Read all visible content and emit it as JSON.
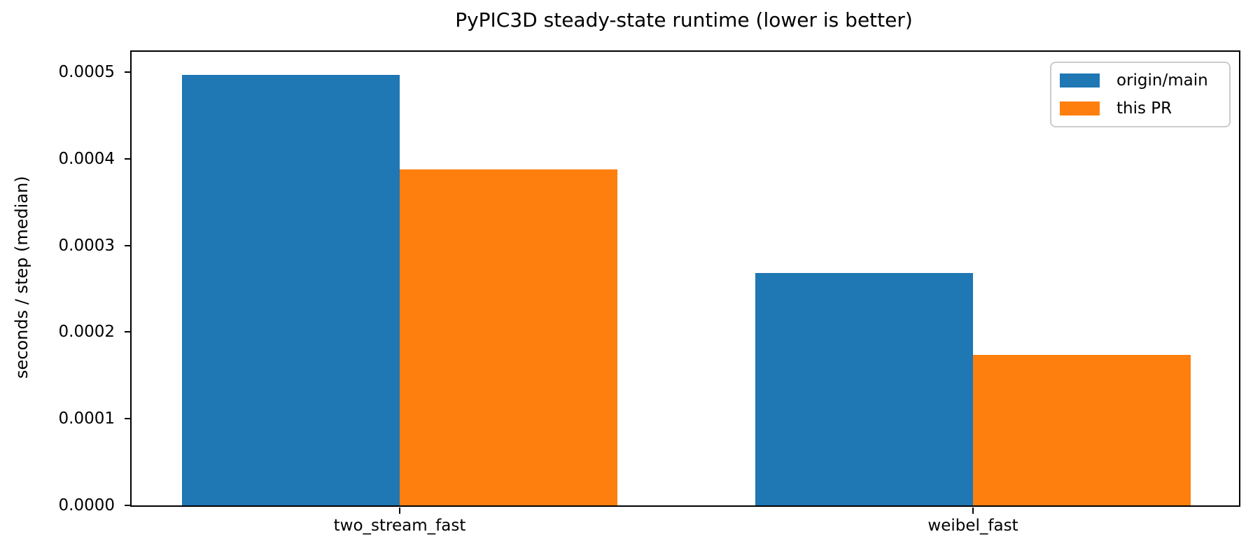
{
  "chart_data": {
    "type": "bar",
    "title": "PyPIC3D steady-state runtime (lower is better)",
    "xlabel": "",
    "ylabel": "seconds / step (median)",
    "categories": [
      "two_stream_fast",
      "weibel_fast"
    ],
    "series": [
      {
        "name": "origin/main",
        "color": "#1f77b4",
        "values": [
          0.000497,
          0.000268
        ]
      },
      {
        "name": "this PR",
        "color": "#ff7f0e",
        "values": [
          0.000388,
          0.000174
        ]
      }
    ],
    "ylim": [
      0,
      0.0005234
    ],
    "yticks": [
      0,
      0.0001,
      0.0002,
      0.0003,
      0.0004,
      0.0005
    ],
    "ytick_labels": [
      "0.0000",
      "0.0001",
      "0.0002",
      "0.0003",
      "0.0004",
      "0.0005"
    ],
    "grid": false,
    "legend_position": "upper right",
    "background_color": "#ffffff",
    "spine_color": "#000000"
  }
}
